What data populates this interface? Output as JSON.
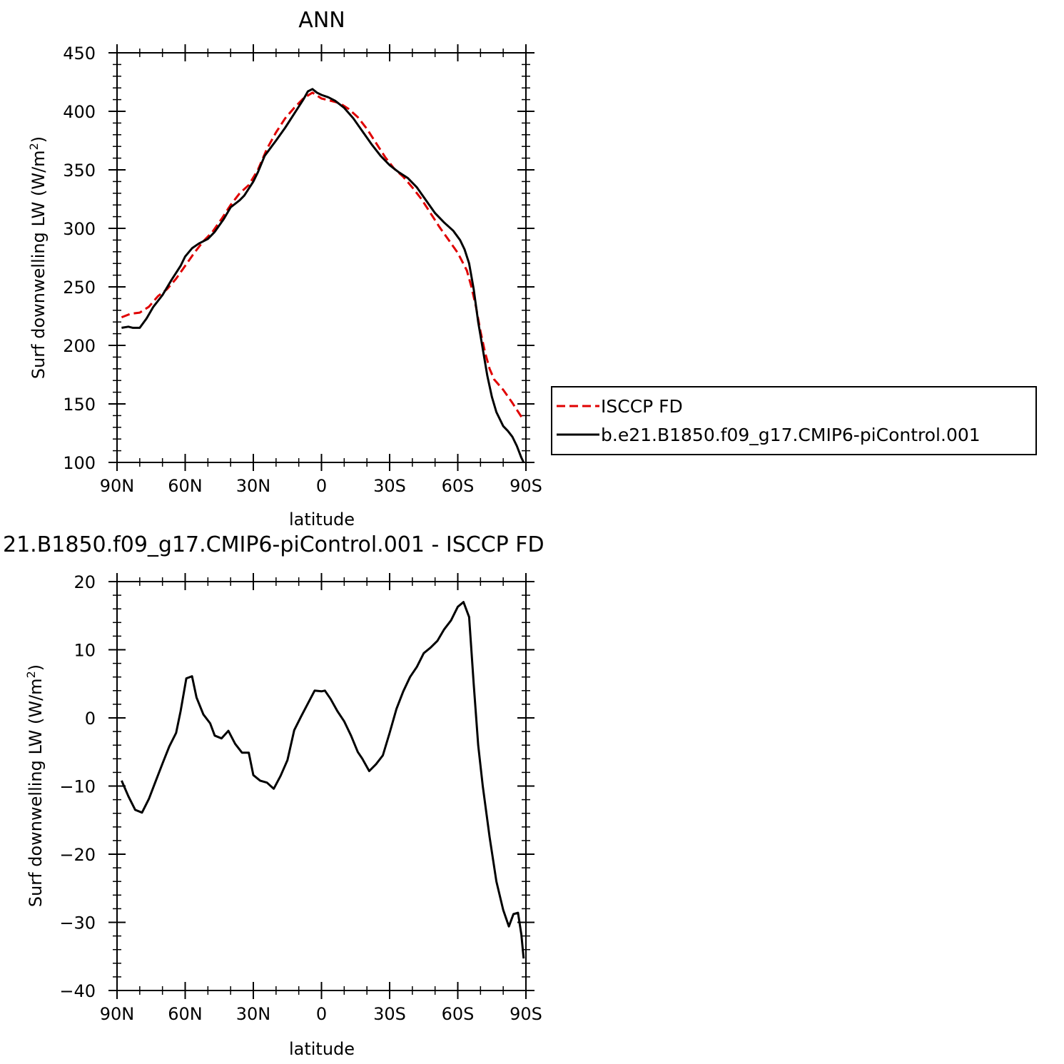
{
  "chart_data": [
    {
      "type": "line",
      "title": "ANN",
      "xlabel": "latitude",
      "ylabel": "Surf downwelling LW (W/m",
      "ylabel_superscript": "2",
      "ylabel_suffix": ")",
      "xlim": [
        -90,
        90
      ],
      "ylim": [
        100,
        450
      ],
      "x_ticks": [
        {
          "value": -90,
          "label": "90N"
        },
        {
          "value": -60,
          "label": "60N"
        },
        {
          "value": -30,
          "label": "30N"
        },
        {
          "value": 0,
          "label": "0"
        },
        {
          "value": 30,
          "label": "30S"
        },
        {
          "value": 60,
          "label": "60S"
        },
        {
          "value": 90,
          "label": "90S"
        }
      ],
      "y_ticks": [
        {
          "value": 100,
          "label": "100"
        },
        {
          "value": 150,
          "label": "150"
        },
        {
          "value": 200,
          "label": "200"
        },
        {
          "value": 250,
          "label": "250"
        },
        {
          "value": 300,
          "label": "300"
        },
        {
          "value": 350,
          "label": "350"
        },
        {
          "value": 400,
          "label": "400"
        },
        {
          "value": 450,
          "label": "450"
        }
      ],
      "legend_position": "right",
      "series": [
        {
          "name": "ISCCP FD",
          "color": "#e00000",
          "dash": "dashed",
          "points": [
            [
              -88,
              224
            ],
            [
              -84,
              227
            ],
            [
              -80,
              228
            ],
            [
              -76,
              233
            ],
            [
              -72,
              242
            ],
            [
              -68,
              248
            ],
            [
              -64,
              257
            ],
            [
              -60,
              268
            ],
            [
              -56,
              279
            ],
            [
              -52,
              289
            ],
            [
              -48,
              297
            ],
            [
              -44,
              308
            ],
            [
              -40,
              320
            ],
            [
              -36,
              330
            ],
            [
              -32,
              337
            ],
            [
              -28,
              350
            ],
            [
              -24,
              368
            ],
            [
              -20,
              382
            ],
            [
              -16,
              394
            ],
            [
              -12,
              403
            ],
            [
              -8,
              411
            ],
            [
              -4,
              416
            ],
            [
              0,
              411
            ],
            [
              4,
              409
            ],
            [
              8,
              407
            ],
            [
              12,
              402
            ],
            [
              16,
              395
            ],
            [
              20,
              385
            ],
            [
              24,
              373
            ],
            [
              28,
              361
            ],
            [
              32,
              351
            ],
            [
              36,
              344
            ],
            [
              40,
              335
            ],
            [
              44,
              325
            ],
            [
              48,
              313
            ],
            [
              52,
              301
            ],
            [
              56,
              290
            ],
            [
              60,
              279
            ],
            [
              64,
              264
            ],
            [
              66,
              250
            ],
            [
              68,
              233
            ],
            [
              70,
              212
            ],
            [
              72,
              194
            ],
            [
              74,
              180
            ],
            [
              76,
              171
            ],
            [
              80,
              162
            ],
            [
              84,
              151
            ],
            [
              88,
              139
            ],
            [
              89,
              136
            ]
          ]
        },
        {
          "name": "b.e21.B1850.f09_g17.CMIP6-piControl.001",
          "color": "#000000",
          "dash": "solid",
          "points": [
            [
              -88,
              215
            ],
            [
              -85,
              216
            ],
            [
              -83,
              215
            ],
            [
              -80,
              215
            ],
            [
              -77,
              223
            ],
            [
              -74,
              233
            ],
            [
              -70,
              243
            ],
            [
              -66,
              256
            ],
            [
              -62,
              268
            ],
            [
              -60,
              276
            ],
            [
              -57,
              283
            ],
            [
              -54,
              287
            ],
            [
              -50,
              291
            ],
            [
              -47,
              297
            ],
            [
              -43,
              308
            ],
            [
              -40,
              318
            ],
            [
              -36,
              324
            ],
            [
              -34,
              328
            ],
            [
              -30,
              340
            ],
            [
              -28,
              348
            ],
            [
              -25,
              362
            ],
            [
              -20,
              375
            ],
            [
              -16,
              386
            ],
            [
              -12,
              398
            ],
            [
              -8,
              410
            ],
            [
              -6,
              417
            ],
            [
              -4,
              419
            ],
            [
              -2,
              416
            ],
            [
              0,
              414
            ],
            [
              3,
              412
            ],
            [
              6,
              409
            ],
            [
              10,
              403
            ],
            [
              14,
              394
            ],
            [
              18,
              383
            ],
            [
              22,
              372
            ],
            [
              26,
              362
            ],
            [
              30,
              354
            ],
            [
              34,
              348
            ],
            [
              38,
              343
            ],
            [
              42,
              335
            ],
            [
              46,
              324
            ],
            [
              50,
              313
            ],
            [
              54,
              305
            ],
            [
              58,
              298
            ],
            [
              61,
              290
            ],
            [
              63,
              282
            ],
            [
              65,
              270
            ],
            [
              67,
              248
            ],
            [
              69,
              220
            ],
            [
              71,
              197
            ],
            [
              73,
              174
            ],
            [
              75,
              156
            ],
            [
              77,
              143
            ],
            [
              80,
              131
            ],
            [
              82,
              127
            ],
            [
              84,
              122
            ],
            [
              86,
              114
            ],
            [
              88,
              104
            ],
            [
              89,
              100
            ]
          ]
        }
      ]
    },
    {
      "type": "line",
      "title": "21.B1850.f09_g17.CMIP6-piControl.001 - ISCCP FD",
      "xlabel": "latitude",
      "ylabel": "Surf downwelling LW (W/m",
      "ylabel_superscript": "2",
      "ylabel_suffix": ")",
      "xlim": [
        -90,
        90
      ],
      "ylim": [
        -40,
        20
      ],
      "x_ticks": [
        {
          "value": -90,
          "label": "90N"
        },
        {
          "value": -60,
          "label": "60N"
        },
        {
          "value": -30,
          "label": "30N"
        },
        {
          "value": 0,
          "label": "0"
        },
        {
          "value": 30,
          "label": "30S"
        },
        {
          "value": 60,
          "label": "60S"
        },
        {
          "value": 90,
          "label": "90S"
        }
      ],
      "y_ticks": [
        {
          "value": -40,
          "label": "−40"
        },
        {
          "value": -30,
          "label": "−30"
        },
        {
          "value": -20,
          "label": "−20"
        },
        {
          "value": -10,
          "label": "−10"
        },
        {
          "value": 0,
          "label": "0"
        },
        {
          "value": 10,
          "label": "10"
        },
        {
          "value": 20,
          "label": "20"
        }
      ],
      "series": [
        {
          "color": "#000000",
          "dash": "solid",
          "points": [
            [
              -88,
              -9.2
            ],
            [
              -85,
              -11.5
            ],
            [
              -82,
              -13.5
            ],
            [
              -79,
              -13.9
            ],
            [
              -76,
              -11.9
            ],
            [
              -73,
              -9.3
            ],
            [
              -70,
              -6.7
            ],
            [
              -67,
              -4.2
            ],
            [
              -64,
              -2.2
            ],
            [
              -62,
              1.0
            ],
            [
              -59.5,
              5.8
            ],
            [
              -57,
              6.1
            ],
            [
              -55,
              3.0
            ],
            [
              -52,
              0.5
            ],
            [
              -49,
              -0.8
            ],
            [
              -47,
              -2.6
            ],
            [
              -44,
              -3.0
            ],
            [
              -41,
              -1.9
            ],
            [
              -38,
              -3.8
            ],
            [
              -35,
              -5.1
            ],
            [
              -32,
              -5.1
            ],
            [
              -30,
              -8.4
            ],
            [
              -27,
              -9.2
            ],
            [
              -24,
              -9.5
            ],
            [
              -21,
              -10.4
            ],
            [
              -18,
              -8.5
            ],
            [
              -15,
              -6.2
            ],
            [
              -12,
              -1.8
            ],
            [
              -9,
              0.2
            ],
            [
              -6,
              2.1
            ],
            [
              -3,
              4.0
            ],
            [
              0,
              3.9
            ],
            [
              1.5,
              4.0
            ],
            [
              4,
              2.8
            ],
            [
              7,
              1.0
            ],
            [
              10,
              -0.5
            ],
            [
              13,
              -2.6
            ],
            [
              16,
              -5.0
            ],
            [
              18,
              -6.0
            ],
            [
              21,
              -7.8
            ],
            [
              24,
              -6.8
            ],
            [
              27,
              -5.5
            ],
            [
              30,
              -2.2
            ],
            [
              33,
              1.3
            ],
            [
              36,
              3.9
            ],
            [
              39,
              6.0
            ],
            [
              42,
              7.5
            ],
            [
              45,
              9.5
            ],
            [
              48,
              10.3
            ],
            [
              51,
              11.3
            ],
            [
              54,
              13.0
            ],
            [
              57,
              14.3
            ],
            [
              60,
              16.3
            ],
            [
              62.5,
              17.0
            ],
            [
              65,
              14.8
            ],
            [
              67,
              5.0
            ],
            [
              69,
              -4.0
            ],
            [
              71,
              -10.0
            ],
            [
              74,
              -17.5
            ],
            [
              77,
              -24.0
            ],
            [
              80,
              -28.2
            ],
            [
              82.5,
              -30.6
            ],
            [
              84.5,
              -28.8
            ],
            [
              86.5,
              -28.6
            ],
            [
              88,
              -31.8
            ],
            [
              89,
              -35.3
            ]
          ]
        }
      ]
    }
  ]
}
